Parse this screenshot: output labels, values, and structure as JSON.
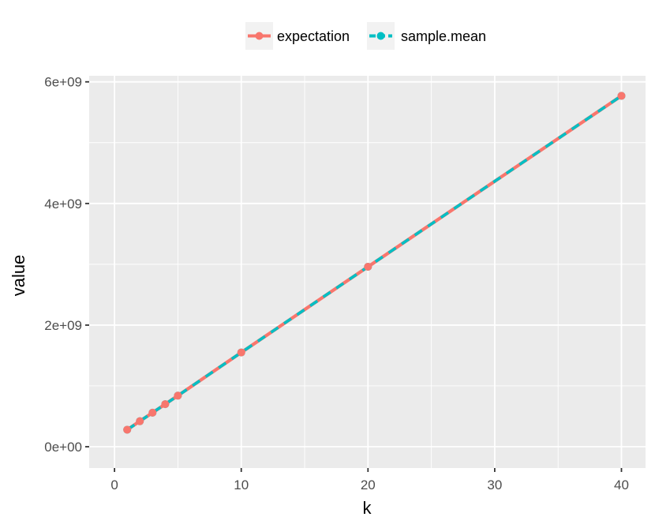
{
  "chart_data": {
    "type": "line",
    "xlabel": "k",
    "ylabel": "value",
    "x_ticks": [
      0,
      10,
      20,
      30,
      40
    ],
    "x_tick_labels": [
      "0",
      "10",
      "20",
      "30",
      "40"
    ],
    "y_ticks": [
      0,
      2000000000,
      4000000000,
      6000000000
    ],
    "y_tick_labels": [
      "0e+00",
      "2e+09",
      "4e+09",
      "6e+09"
    ],
    "xlim": [
      -2,
      41.9
    ],
    "ylim": [
      -350000000,
      6100000000
    ],
    "grid": true,
    "legend_position": "top",
    "x": [
      1,
      2,
      3,
      4,
      5,
      10,
      20,
      40
    ],
    "series": [
      {
        "name": "expectation",
        "color": "#F8766D",
        "line": "solid",
        "values": [
          280000000,
          420000000,
          560000000,
          700000000,
          840000000,
          1550000000,
          2960000000,
          5770000000
        ]
      },
      {
        "name": "sample.mean",
        "color": "#00BFC4",
        "line": "dashed",
        "values": [
          280000000,
          420000000,
          560000000,
          700000000,
          840000000,
          1550000000,
          2960000000,
          5770000000
        ]
      }
    ]
  }
}
